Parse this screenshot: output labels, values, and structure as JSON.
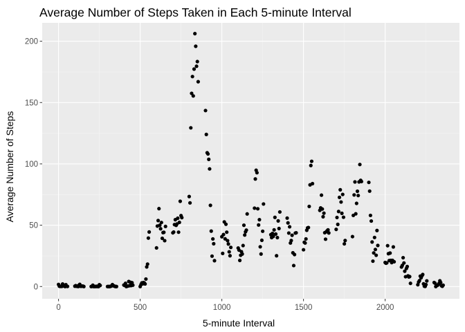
{
  "chart_data": {
    "type": "scatter",
    "title": "Average Number of Steps Taken in Each 5-minute Interval",
    "xlabel": "5-minute Interval",
    "ylabel": "Average Number of Steps",
    "xlim": [
      -100,
      2455
    ],
    "ylim": [
      -10,
      215
    ],
    "x_ticks": [
      0,
      500,
      1000,
      1500,
      2000
    ],
    "y_ticks": [
      0,
      50,
      100,
      150,
      200
    ],
    "x_tick_labels": [
      "0",
      "500",
      "1000",
      "1500",
      "2000"
    ],
    "y_tick_labels": [
      "0",
      "50",
      "100",
      "150",
      "200"
    ],
    "grid": true,
    "colors": {
      "panel": "#ebebeb",
      "grid_major": "#ffffff",
      "point": "#000000"
    },
    "points": [
      [
        0,
        1.7
      ],
      [
        5,
        0.3
      ],
      [
        10,
        0.1
      ],
      [
        15,
        0.2
      ],
      [
        20,
        0.1
      ],
      [
        25,
        2.1
      ],
      [
        30,
        0.5
      ],
      [
        35,
        0.9
      ],
      [
        40,
        0.0
      ],
      [
        45,
        1.5
      ],
      [
        50,
        0.3
      ],
      [
        55,
        0.1
      ],
      [
        100,
        0.3
      ],
      [
        105,
        0.7
      ],
      [
        110,
        0.2
      ],
      [
        115,
        0.3
      ],
      [
        120,
        0.0
      ],
      [
        125,
        1.1
      ],
      [
        130,
        1.8
      ],
      [
        135,
        0.2
      ],
      [
        140,
        0.2
      ],
      [
        145,
        0.4
      ],
      [
        150,
        0.3
      ],
      [
        155,
        0.0
      ],
      [
        200,
        0.0
      ],
      [
        205,
        0.1
      ],
      [
        210,
        1.1
      ],
      [
        215,
        0.0
      ],
      [
        220,
        0.0
      ],
      [
        225,
        0.1
      ],
      [
        230,
        0.0
      ],
      [
        235,
        0.2
      ],
      [
        240,
        0.0
      ],
      [
        245,
        0.0
      ],
      [
        250,
        1.5
      ],
      [
        255,
        0.9
      ],
      [
        300,
        0.0
      ],
      [
        305,
        0.0
      ],
      [
        310,
        0.0
      ],
      [
        315,
        0.0
      ],
      [
        320,
        0.2
      ],
      [
        325,
        0.6
      ],
      [
        330,
        1.6
      ],
      [
        335,
        0.6
      ],
      [
        340,
        0.5
      ],
      [
        345,
        0.1
      ],
      [
        350,
        0.0
      ],
      [
        355,
        0.0
      ],
      [
        400,
        1.2
      ],
      [
        405,
        0.9
      ],
      [
        410,
        2.6
      ],
      [
        415,
        0.0
      ],
      [
        420,
        0.3
      ],
      [
        425,
        0.4
      ],
      [
        430,
        4.1
      ],
      [
        435,
        0.7
      ],
      [
        440,
        3.5
      ],
      [
        445,
        0.8
      ],
      [
        450,
        3.1
      ],
      [
        455,
        1.1
      ],
      [
        500,
        0.0
      ],
      [
        505,
        1.6
      ],
      [
        510,
        3.0
      ],
      [
        515,
        2.2
      ],
      [
        520,
        3.3
      ],
      [
        525,
        3.0
      ],
      [
        530,
        2.1
      ],
      [
        535,
        6.1
      ],
      [
        540,
        16.0
      ],
      [
        545,
        18.3
      ],
      [
        550,
        39.5
      ],
      [
        555,
        44.5
      ],
      [
        600,
        31.5
      ],
      [
        605,
        49.3
      ],
      [
        610,
        53.8
      ],
      [
        615,
        63.5
      ],
      [
        620,
        50.0
      ],
      [
        625,
        47.1
      ],
      [
        630,
        52.2
      ],
      [
        635,
        39.3
      ],
      [
        640,
        44.0
      ],
      [
        645,
        44.2
      ],
      [
        650,
        37.4
      ],
      [
        655,
        49.0
      ],
      [
        700,
        43.8
      ],
      [
        705,
        44.4
      ],
      [
        710,
        50.5
      ],
      [
        715,
        54.5
      ],
      [
        720,
        49.9
      ],
      [
        725,
        51.0
      ],
      [
        730,
        55.7
      ],
      [
        735,
        44.3
      ],
      [
        740,
        52.3
      ],
      [
        745,
        69.5
      ],
      [
        750,
        57.8
      ],
      [
        755,
        56.2
      ],
      [
        800,
        73.4
      ],
      [
        805,
        68.2
      ],
      [
        810,
        129.4
      ],
      [
        815,
        157.5
      ],
      [
        820,
        171.2
      ],
      [
        825,
        155.4
      ],
      [
        830,
        177.3
      ],
      [
        835,
        206.2
      ],
      [
        840,
        195.9
      ],
      [
        845,
        179.6
      ],
      [
        850,
        183.4
      ],
      [
        855,
        167.0
      ],
      [
        900,
        143.5
      ],
      [
        905,
        124.0
      ],
      [
        910,
        109.1
      ],
      [
        915,
        108.1
      ],
      [
        920,
        103.7
      ],
      [
        925,
        95.9
      ],
      [
        930,
        66.2
      ],
      [
        935,
        45.2
      ],
      [
        940,
        24.8
      ],
      [
        945,
        38.8
      ],
      [
        950,
        34.9
      ],
      [
        955,
        21.1
      ],
      [
        1000,
        40.6
      ],
      [
        1005,
        27.0
      ],
      [
        1010,
        42.4
      ],
      [
        1015,
        52.7
      ],
      [
        1020,
        38.9
      ],
      [
        1025,
        50.8
      ],
      [
        1030,
        44.3
      ],
      [
        1035,
        37.4
      ],
      [
        1040,
        34.7
      ],
      [
        1045,
        28.3
      ],
      [
        1050,
        25.1
      ],
      [
        1055,
        31.9
      ],
      [
        1100,
        31.4
      ],
      [
        1105,
        29.7
      ],
      [
        1110,
        21.3
      ],
      [
        1115,
        25.5
      ],
      [
        1120,
        28.4
      ],
      [
        1125,
        26.5
      ],
      [
        1130,
        33.4
      ],
      [
        1135,
        50.0
      ],
      [
        1140,
        42.0
      ],
      [
        1145,
        44.6
      ],
      [
        1150,
        46.0
      ],
      [
        1155,
        59.2
      ],
      [
        1200,
        63.9
      ],
      [
        1205,
        87.7
      ],
      [
        1210,
        94.8
      ],
      [
        1215,
        92.8
      ],
      [
        1220,
        63.4
      ],
      [
        1225,
        50.2
      ],
      [
        1230,
        54.5
      ],
      [
        1235,
        32.4
      ],
      [
        1240,
        26.5
      ],
      [
        1245,
        37.7
      ],
      [
        1250,
        45.1
      ],
      [
        1255,
        67.3
      ],
      [
        1300,
        42.3
      ],
      [
        1305,
        39.9
      ],
      [
        1310,
        43.3
      ],
      [
        1315,
        40.9
      ],
      [
        1320,
        46.2
      ],
      [
        1325,
        56.4
      ],
      [
        1330,
        42.8
      ],
      [
        1335,
        25.1
      ],
      [
        1340,
        39.9
      ],
      [
        1345,
        53.5
      ],
      [
        1350,
        47.3
      ],
      [
        1355,
        60.8
      ],
      [
        1400,
        55.8
      ],
      [
        1405,
        51.9
      ],
      [
        1410,
        43.6
      ],
      [
        1415,
        48.7
      ],
      [
        1420,
        35.5
      ],
      [
        1425,
        37.5
      ],
      [
        1430,
        41.8
      ],
      [
        1435,
        27.5
      ],
      [
        1440,
        17.1
      ],
      [
        1445,
        26.1
      ],
      [
        1450,
        43.6
      ],
      [
        1455,
        43.8
      ],
      [
        1500,
        30.0
      ],
      [
        1505,
        36.1
      ],
      [
        1510,
        35.5
      ],
      [
        1515,
        38.8
      ],
      [
        1520,
        45.9
      ],
      [
        1525,
        47.8
      ],
      [
        1530,
        48.1
      ],
      [
        1535,
        65.3
      ],
      [
        1540,
        82.9
      ],
      [
        1545,
        98.7
      ],
      [
        1550,
        102.1
      ],
      [
        1555,
        83.9
      ],
      [
        1600,
        62.1
      ],
      [
        1605,
        64.1
      ],
      [
        1610,
        74.5
      ],
      [
        1615,
        63.2
      ],
      [
        1620,
        56.9
      ],
      [
        1625,
        59.8
      ],
      [
        1630,
        43.9
      ],
      [
        1635,
        38.6
      ],
      [
        1640,
        44.7
      ],
      [
        1645,
        45.5
      ],
      [
        1650,
        46.2
      ],
      [
        1655,
        43.7
      ],
      [
        1700,
        46.6
      ],
      [
        1705,
        56.3
      ],
      [
        1710,
        50.7
      ],
      [
        1715,
        61.2
      ],
      [
        1720,
        72.7
      ],
      [
        1725,
        78.9
      ],
      [
        1730,
        68.9
      ],
      [
        1735,
        59.7
      ],
      [
        1740,
        75.1
      ],
      [
        1745,
        56.5
      ],
      [
        1750,
        34.8
      ],
      [
        1755,
        37.5
      ],
      [
        1800,
        40.7
      ],
      [
        1805,
        58.0
      ],
      [
        1810,
        74.7
      ],
      [
        1815,
        85.3
      ],
      [
        1820,
        59.3
      ],
      [
        1825,
        67.8
      ],
      [
        1830,
        77.7
      ],
      [
        1835,
        74.2
      ],
      [
        1840,
        85.3
      ],
      [
        1845,
        99.5
      ],
      [
        1850,
        86.6
      ],
      [
        1855,
        85.6
      ],
      [
        1900,
        84.9
      ],
      [
        1905,
        77.8
      ],
      [
        1910,
        58.0
      ],
      [
        1915,
        53.4
      ],
      [
        1920,
        36.3
      ],
      [
        1925,
        20.7
      ],
      [
        1930,
        27.4
      ],
      [
        1935,
        40.0
      ],
      [
        1940,
        30.2
      ],
      [
        1945,
        25.5
      ],
      [
        1950,
        45.7
      ],
      [
        1955,
        33.5
      ],
      [
        2000,
        19.6
      ],
      [
        2005,
        19.0
      ],
      [
        2010,
        19.3
      ],
      [
        2015,
        33.3
      ],
      [
        2020,
        26.8
      ],
      [
        2025,
        21.2
      ],
      [
        2030,
        27.3
      ],
      [
        2035,
        21.3
      ],
      [
        2040,
        19.5
      ],
      [
        2045,
        21.3
      ],
      [
        2050,
        32.3
      ],
      [
        2055,
        20.2
      ],
      [
        2100,
        15.9
      ],
      [
        2105,
        17.2
      ],
      [
        2110,
        23.5
      ],
      [
        2115,
        19.2
      ],
      [
        2120,
        12.5
      ],
      [
        2125,
        8.0
      ],
      [
        2130,
        14.7
      ],
      [
        2135,
        16.3
      ],
      [
        2140,
        8.7
      ],
      [
        2145,
        7.8
      ],
      [
        2150,
        8.1
      ],
      [
        2155,
        2.6
      ],
      [
        2200,
        1.5
      ],
      [
        2205,
        3.7
      ],
      [
        2210,
        4.8
      ],
      [
        2215,
        8.5
      ],
      [
        2220,
        7.1
      ],
      [
        2225,
        8.7
      ],
      [
        2230,
        9.8
      ],
      [
        2235,
        2.2
      ],
      [
        2240,
        0.3
      ],
      [
        2245,
        0.1
      ],
      [
        2250,
        1.6
      ],
      [
        2255,
        4.6
      ],
      [
        2300,
        3.3
      ],
      [
        2305,
        2.8
      ],
      [
        2310,
        0.0
      ],
      [
        2315,
        0.8
      ],
      [
        2320,
        1.0
      ],
      [
        2325,
        1.6
      ],
      [
        2330,
        2.6
      ],
      [
        2335,
        4.7
      ],
      [
        2340,
        3.3
      ],
      [
        2345,
        0.6
      ],
      [
        2350,
        0.2
      ],
      [
        2355,
        1.1
      ]
    ]
  }
}
